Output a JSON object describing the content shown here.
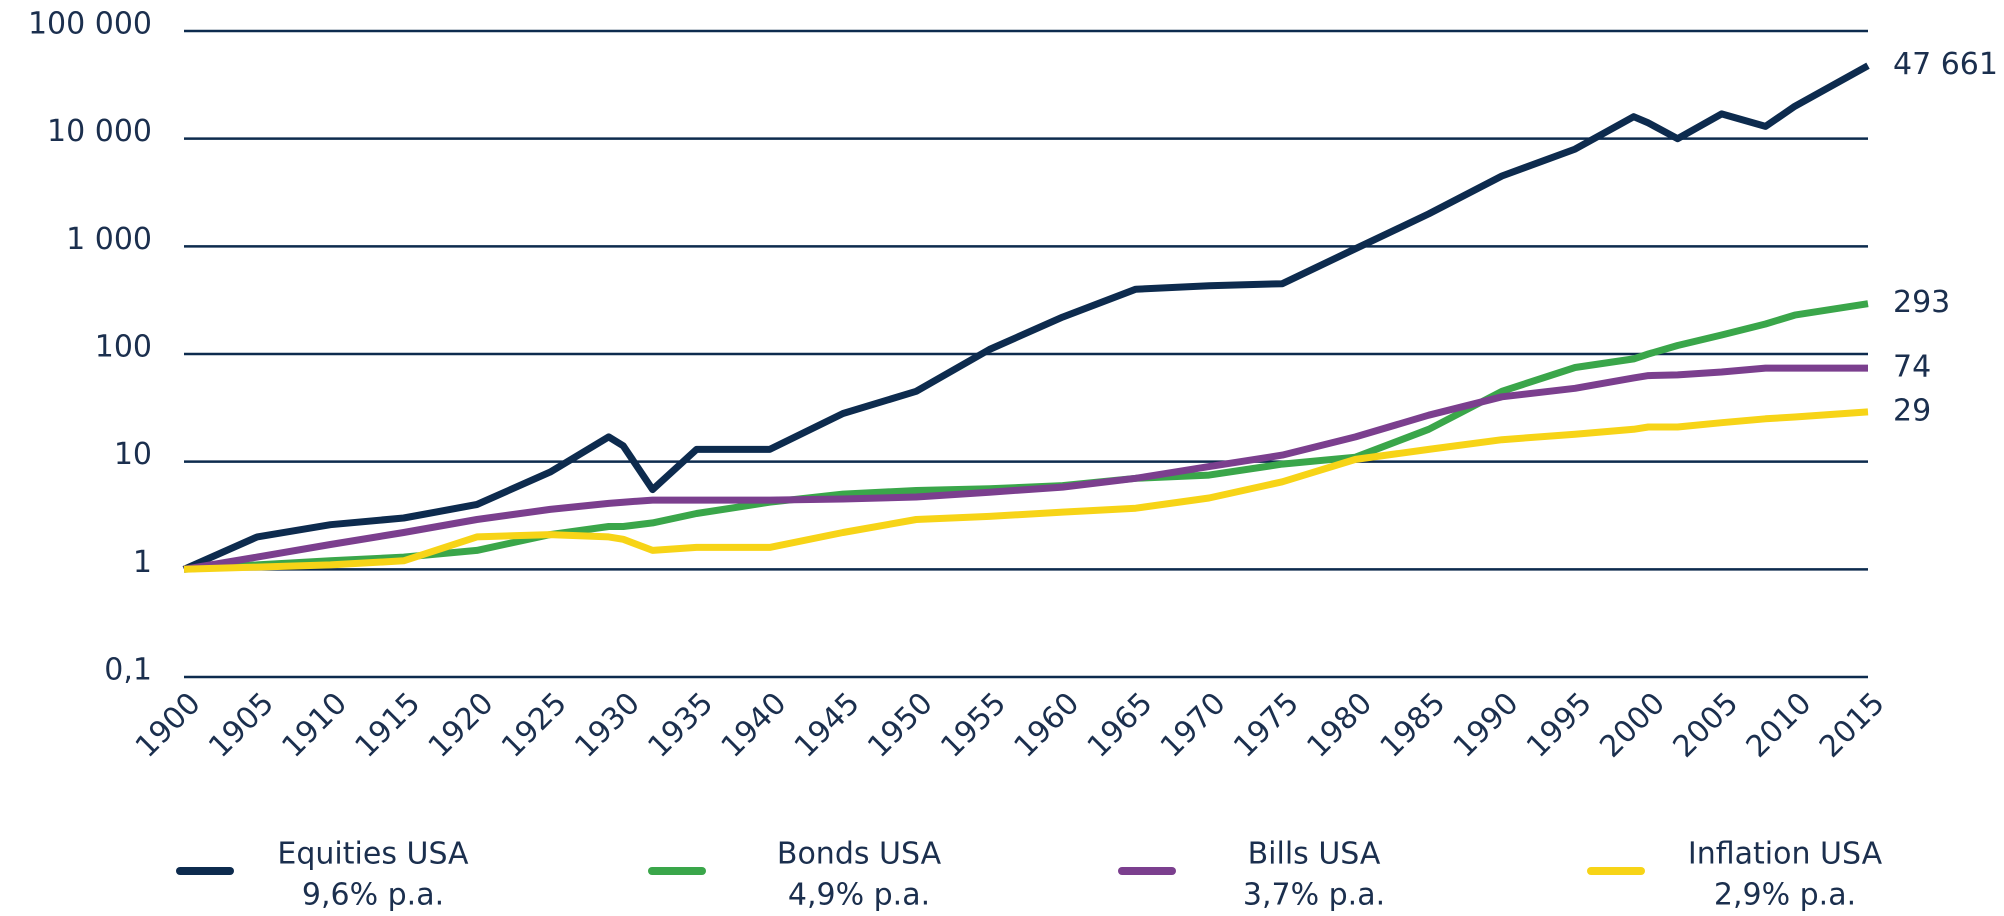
{
  "chart_data": {
    "type": "line",
    "log_scale": true,
    "grid": true,
    "x": [
      1900,
      1905,
      1910,
      1915,
      1920,
      1925,
      1929,
      1930,
      1932,
      1935,
      1940,
      1945,
      1950,
      1955,
      1960,
      1965,
      1970,
      1975,
      1980,
      1985,
      1990,
      1995,
      1999,
      2000,
      2002,
      2005,
      2008,
      2010,
      2015
    ],
    "xlim": [
      1900,
      2015
    ],
    "xticks": [
      1900,
      1905,
      1910,
      1915,
      1920,
      1925,
      1930,
      1935,
      1940,
      1945,
      1950,
      1955,
      1960,
      1965,
      1970,
      1975,
      1980,
      1985,
      1990,
      1995,
      2000,
      2005,
      2010,
      2015
    ],
    "ylim": [
      0.1,
      100000
    ],
    "yticks": [
      {
        "value": 0.1,
        "label": "0,1"
      },
      1,
      10,
      100,
      {
        "value": 1000,
        "label": "1 000"
      },
      {
        "value": 10000,
        "label": "10 000"
      },
      {
        "value": 100000,
        "label": "100 000"
      }
    ],
    "series": [
      {
        "name": "Equities USA",
        "rate": "9,6% p.a.",
        "color": "#0d2b4e",
        "end_label": "47 661",
        "values": [
          1,
          2,
          2.6,
          3,
          4,
          8,
          17,
          14,
          5.5,
          13,
          13,
          28,
          45,
          110,
          220,
          400,
          430,
          450,
          950,
          2000,
          4500,
          8000,
          16000,
          14000,
          10000,
          17000,
          13000,
          20000,
          47661
        ]
      },
      {
        "name": "Bonds USA",
        "rate": "4,9% p.a.",
        "color": "#3aa64a",
        "end_label": "293",
        "values": [
          1,
          1.1,
          1.2,
          1.3,
          1.5,
          2.1,
          2.5,
          2.5,
          2.7,
          3.3,
          4.2,
          5,
          5.4,
          5.6,
          6,
          7,
          7.5,
          9.5,
          11,
          20,
          45,
          75,
          90,
          100,
          120,
          150,
          190,
          230,
          293
        ]
      },
      {
        "name": "Bills USA",
        "rate": "3,7% p.a.",
        "color": "#7b3f8e",
        "end_label": "74",
        "values": [
          1,
          1.3,
          1.7,
          2.2,
          2.9,
          3.6,
          4.1,
          4.2,
          4.4,
          4.4,
          4.4,
          4.5,
          4.7,
          5.2,
          5.8,
          7,
          9,
          11.5,
          17,
          27,
          40,
          48,
          60,
          63,
          64,
          68,
          74,
          74,
          74
        ]
      },
      {
        "name": "Inflation USA",
        "rate": "2,9% p.a.",
        "color": "#f7d417",
        "end_label": "29",
        "values": [
          1,
          1.05,
          1.1,
          1.2,
          2.0,
          2.1,
          2.0,
          1.9,
          1.5,
          1.6,
          1.6,
          2.2,
          2.9,
          3.1,
          3.4,
          3.7,
          4.6,
          6.5,
          10.5,
          13,
          16,
          18,
          20,
          21,
          21,
          23,
          25,
          26,
          29
        ]
      }
    ]
  }
}
